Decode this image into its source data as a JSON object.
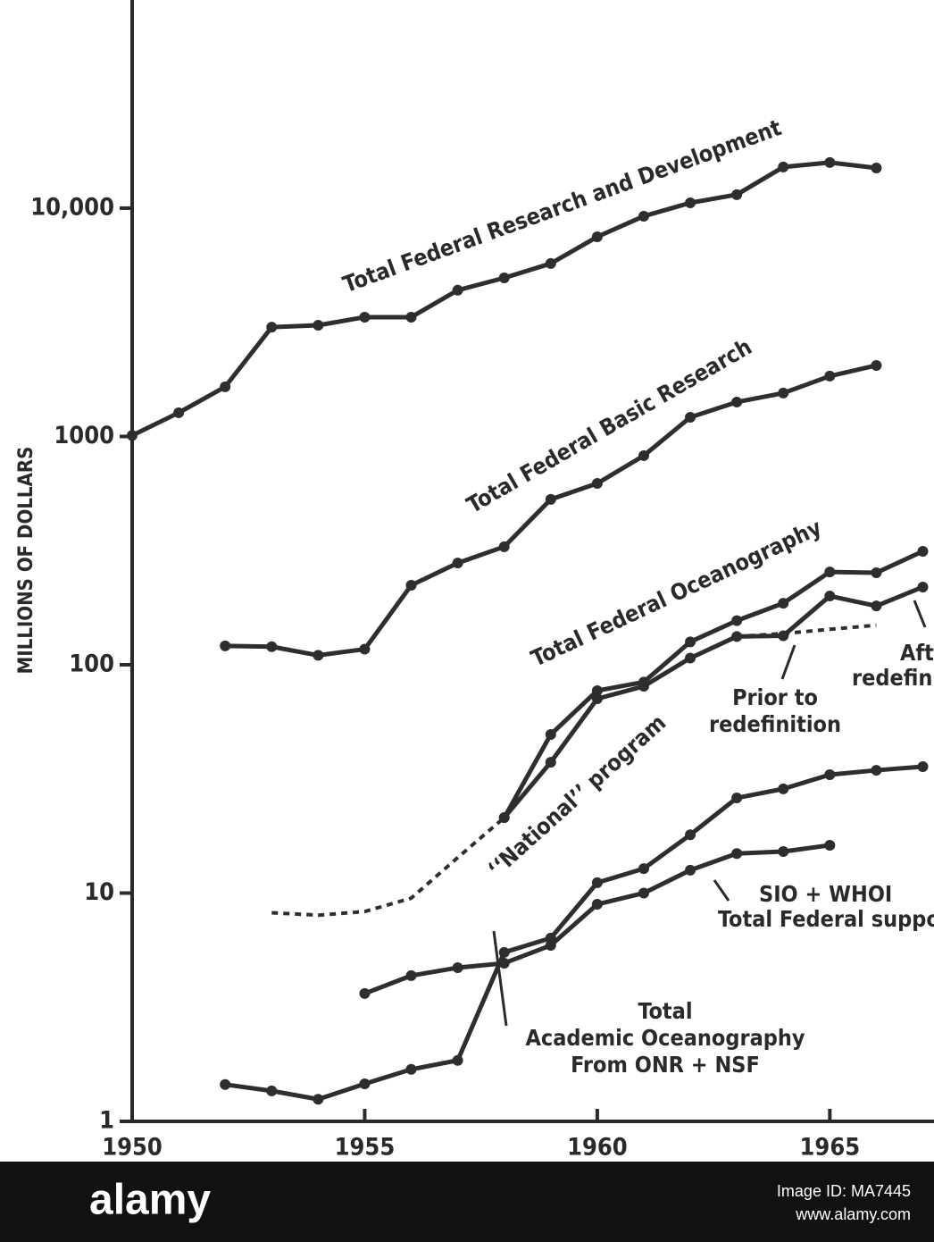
{
  "chart_data": {
    "type": "line",
    "y_label": "MILLIONS OF DOLLARS",
    "log_y": true,
    "xlim": [
      1950,
      1967.24
    ],
    "ylim": [
      1,
      81600
    ],
    "xticks": [
      1950,
      1955,
      1960,
      1965
    ],
    "yticks": [
      1,
      10,
      100,
      1000,
      {
        "value": 10000,
        "label": "10,000"
      }
    ],
    "series": [
      {
        "color": "#2e2e2e",
        "dashed": false,
        "markers": true,
        "x": [
          1950,
          1951,
          1952,
          1953,
          1954,
          1955,
          1956,
          1957,
          1958,
          1959,
          1960,
          1961,
          1962,
          1963,
          1964,
          1965,
          1966
        ],
        "values": [
          1010,
          1270,
          1650,
          3010,
          3070,
          3330,
          3330,
          4370,
          4950,
          5720,
          7490,
          9220,
          10550,
          11460,
          15140,
          15840,
          15000
        ]
      },
      {
        "color": "#2e2e2e",
        "dashed": false,
        "markers": true,
        "x": [
          1952,
          1953,
          1954,
          1955,
          1956,
          1957,
          1958,
          1959,
          1960,
          1961,
          1962,
          1963,
          1964,
          1965,
          1966
        ],
        "values": [
          121,
          120,
          110,
          117,
          223,
          279,
          329,
          530,
          623,
          824,
          1213,
          1415,
          1549,
          1838,
          2047
        ]
      },
      {
        "color": "#2e2e2e",
        "dashed": false,
        "markers": true,
        "x": [
          1958,
          1959,
          1960,
          1961,
          1962,
          1963,
          1964,
          1965,
          1966,
          1967
        ],
        "values": [
          21.4,
          49.5,
          77,
          84,
          126,
          156,
          186,
          255,
          253,
          314
        ]
      },
      {
        "color": "#2e2e2e",
        "dashed": false,
        "markers": true,
        "x": [
          1958,
          1959,
          1960,
          1961,
          1962,
          1963,
          1964,
          1965,
          1966,
          1967
        ],
        "values": [
          21.4,
          37.4,
          71,
          80.5,
          107,
          133,
          134,
          200,
          181,
          219
        ]
      },
      {
        "color": "#2e2e2e",
        "dashed": true,
        "markers": false,
        "x": [
          1963,
          1964,
          1965,
          1966
        ],
        "values": [
          133,
          137,
          143,
          149
        ]
      },
      {
        "color": "#2e2e2e",
        "dashed": true,
        "markers": false,
        "x": [
          1953,
          1954,
          1955,
          1956,
          1957,
          1958
        ],
        "values": [
          8.2,
          8.0,
          8.3,
          9.5,
          14.3,
          21.4
        ]
      },
      {
        "color": "#2e2e2e",
        "dashed": false,
        "markers": true,
        "x": [
          1952,
          1953,
          1954,
          1955,
          1956,
          1957,
          1958,
          1959,
          1960,
          1961,
          1962,
          1963,
          1964,
          1965,
          1966,
          1967
        ],
        "values": [
          1.45,
          1.36,
          1.25,
          1.46,
          1.69,
          1.85,
          5.5,
          6.35,
          11.1,
          12.8,
          18.0,
          26.1,
          28.6,
          33.0,
          34.5,
          35.8
        ]
      },
      {
        "color": "#2e2e2e",
        "dashed": false,
        "markers": true,
        "x": [
          1955,
          1956,
          1957,
          1958,
          1959,
          1960,
          1961,
          1962,
          1963,
          1964,
          1965
        ],
        "values": [
          3.63,
          4.35,
          4.71,
          4.93,
          5.9,
          8.93,
          10.0,
          12.6,
          14.9,
          15.2,
          16.2
        ]
      }
    ],
    "annotations": [
      [
        "Total Federal Research and Development"
      ],
      [
        "Total Federal Basic Research"
      ],
      [
        "Total Federal Oceanography"
      ],
      [
        "‘‘National’’ program"
      ],
      [
        "Prior to",
        "redefinition"
      ],
      [
        "After",
        "redefinition"
      ],
      [
        "SIO + WHOI",
        "Total Federal support"
      ],
      [
        "Total",
        "Academic Oceanography",
        "From ONR + NSF"
      ]
    ]
  },
  "watermark": {
    "logo": "alamy",
    "image_id": "Image ID: MA7445",
    "url": "www.alamy.com"
  }
}
